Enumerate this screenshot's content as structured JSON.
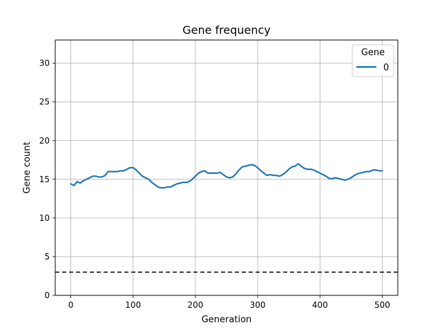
{
  "chart_data": {
    "type": "line",
    "title": "Gene frequency",
    "xlabel": "Generation",
    "ylabel": "Gene count",
    "xlim": [
      -25,
      525
    ],
    "ylim": [
      0,
      33
    ],
    "xticks": [
      0,
      100,
      200,
      300,
      400,
      500
    ],
    "yticks": [
      0,
      5,
      10,
      15,
      20,
      25,
      30
    ],
    "grid": true,
    "legend": {
      "title": "Gene",
      "position": "top-right",
      "entries": [
        "0"
      ]
    },
    "series": [
      {
        "name": "0",
        "color": "#1f77b4",
        "x": [
          0,
          5,
          10,
          15,
          20,
          25,
          30,
          35,
          40,
          45,
          50,
          55,
          60,
          65,
          70,
          75,
          80,
          85,
          90,
          95,
          100,
          105,
          110,
          115,
          120,
          125,
          130,
          135,
          140,
          145,
          150,
          155,
          160,
          165,
          170,
          175,
          180,
          185,
          190,
          195,
          200,
          205,
          210,
          215,
          220,
          225,
          230,
          235,
          240,
          245,
          250,
          255,
          260,
          265,
          270,
          275,
          280,
          285,
          290,
          295,
          300,
          305,
          310,
          315,
          320,
          325,
          330,
          335,
          340,
          345,
          350,
          355,
          360,
          365,
          370,
          375,
          380,
          385,
          390,
          395,
          400,
          405,
          410,
          415,
          420,
          425,
          430,
          435,
          440,
          445,
          450,
          455,
          460,
          465,
          470,
          475,
          480,
          485,
          490,
          495,
          500
        ],
        "y": [
          14.4,
          14.2,
          14.7,
          14.5,
          14.8,
          15.0,
          15.2,
          15.4,
          15.4,
          15.3,
          15.3,
          15.5,
          16.0,
          16.0,
          16.0,
          16.0,
          16.1,
          16.1,
          16.3,
          16.5,
          16.5,
          16.2,
          15.8,
          15.4,
          15.2,
          15.0,
          14.6,
          14.3,
          14.0,
          13.9,
          13.9,
          14.0,
          14.0,
          14.2,
          14.4,
          14.5,
          14.6,
          14.6,
          14.7,
          15.0,
          15.4,
          15.8,
          16.0,
          16.1,
          15.8,
          15.8,
          15.8,
          15.8,
          15.9,
          15.6,
          15.3,
          15.2,
          15.3,
          15.7,
          16.2,
          16.6,
          16.7,
          16.8,
          16.9,
          16.8,
          16.5,
          16.1,
          15.8,
          15.5,
          15.6,
          15.5,
          15.5,
          15.4,
          15.6,
          15.9,
          16.3,
          16.6,
          16.7,
          17.0,
          16.7,
          16.4,
          16.3,
          16.3,
          16.2,
          16.0,
          15.8,
          15.6,
          15.4,
          15.1,
          15.1,
          15.2,
          15.1,
          15.0,
          14.9,
          15.0,
          15.2,
          15.5,
          15.7,
          15.8,
          15.9,
          16.0,
          16.0,
          16.2,
          16.2,
          16.1,
          16.1
        ]
      }
    ],
    "reference_lines": [
      {
        "orientation": "horizontal",
        "y": 3,
        "style": "dashed",
        "color": "#000000"
      }
    ]
  }
}
